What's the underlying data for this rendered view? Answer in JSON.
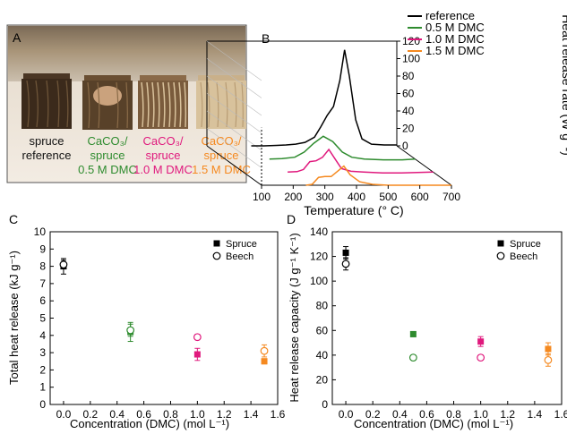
{
  "panel_labels": [
    "A",
    "B",
    "C",
    "D"
  ],
  "photo": {
    "samples": [
      {
        "lines": [
          "spruce",
          "reference"
        ],
        "color": "#111111"
      },
      {
        "lines": [
          "CaCO₃/",
          "spruce",
          "0.5 M DMC"
        ],
        "colors": [
          "#2e8b2e",
          "#2e8b2e",
          "#2e8b2e"
        ]
      },
      {
        "lines": [
          "CaCO₃/",
          "spruce",
          "1.0 M DMC"
        ],
        "colors": [
          "#e0197d",
          "#e0197d",
          "#e0197d"
        ]
      },
      {
        "lines": [
          "CaCO₃/",
          "spruce",
          "1.5 M DMC"
        ],
        "colors": [
          "#f5891f",
          "#f5891f",
          "#f5891f"
        ]
      }
    ]
  },
  "chart_data": [
    {
      "panel": "B",
      "type": "line",
      "view": "3d-offset",
      "xlabel": "Temperature (° C)",
      "xticks": [
        100,
        200,
        300,
        400,
        500,
        600,
        700
      ],
      "xlim": [
        100,
        700
      ],
      "zlabel": "Heat release rate (W g⁻¹)",
      "zticks": [
        0,
        20,
        40,
        60,
        80,
        100,
        120
      ],
      "zlim": [
        0,
        120
      ],
      "legend": "top-left",
      "series": [
        {
          "name": "reference",
          "color": "#000000",
          "x": [
            240,
            280,
            320,
            350,
            380,
            410,
            440,
            460,
            480,
            500,
            520,
            535,
            550,
            570,
            590,
            620,
            660,
            700
          ],
          "y": [
            0,
            0,
            0.5,
            1,
            2,
            4,
            10,
            22,
            35,
            45,
            75,
            110,
            80,
            30,
            8,
            2,
            1,
            1
          ]
        },
        {
          "name": "0.5 M DMC",
          "color": "#2e8b2e",
          "x": [
            240,
            280,
            320,
            350,
            380,
            410,
            440,
            470,
            500,
            540,
            600,
            660,
            700
          ],
          "y": [
            0,
            0.5,
            2,
            8,
            18,
            26,
            20,
            8,
            2,
            0,
            -1,
            -1,
            0
          ]
        },
        {
          "name": "1.0 M DMC",
          "color": "#e0197d",
          "x": [
            240,
            270,
            290,
            310,
            330,
            350,
            370,
            390,
            410,
            440,
            480,
            540,
            600,
            700
          ],
          "y": [
            0,
            0.5,
            3,
            12,
            13,
            17,
            26,
            15,
            4,
            1,
            0,
            -1,
            -1,
            0
          ]
        },
        {
          "name": "1.5 M DMC",
          "color": "#f5891f",
          "x": [
            240,
            260,
            280,
            300,
            320,
            340,
            360,
            380,
            410,
            450,
            500,
            600,
            700
          ],
          "y": [
            0,
            1,
            9,
            10,
            10,
            16,
            22,
            12,
            4,
            1,
            0,
            0,
            0
          ]
        }
      ]
    },
    {
      "panel": "C",
      "type": "scatter",
      "xlabel": "Concentration (DMC) (mol L⁻¹)",
      "ylabel": "Total heat release (kJ g⁻¹)",
      "xticks": [
        0.0,
        0.2,
        0.4,
        0.6,
        0.8,
        1.0,
        1.2,
        1.4,
        1.6
      ],
      "yticks": [
        0,
        1,
        2,
        3,
        4,
        5,
        6,
        7,
        8,
        9,
        10
      ],
      "xlim": [
        -0.1,
        1.6
      ],
      "ylim": [
        0,
        10
      ],
      "legend": "top-right",
      "legend_entries": [
        {
          "name": "Spruce",
          "marker": "filled-square",
          "color": "#000000"
        },
        {
          "name": "Beech",
          "marker": "open-circle",
          "color": "#000000"
        }
      ],
      "points": [
        {
          "x": 0.0,
          "y": 8.0,
          "err": 0.45,
          "series": "Spruce",
          "color": "#000000"
        },
        {
          "x": 0.0,
          "y": 8.1,
          "err": 0.25,
          "series": "Beech",
          "color": "#000000"
        },
        {
          "x": 0.5,
          "y": 4.2,
          "err": 0.55,
          "series": "Spruce",
          "color": "#2e8b2e"
        },
        {
          "x": 0.5,
          "y": 4.3,
          "err": 0.35,
          "series": "Beech",
          "color": "#2e8b2e"
        },
        {
          "x": 1.0,
          "y": 2.9,
          "err": 0.35,
          "series": "Spruce",
          "color": "#e0197d"
        },
        {
          "x": 1.0,
          "y": 3.9,
          "err": 0.15,
          "series": "Beech",
          "color": "#e0197d"
        },
        {
          "x": 1.5,
          "y": 2.5,
          "err": 0.15,
          "series": "Spruce",
          "color": "#f5891f"
        },
        {
          "x": 1.5,
          "y": 3.1,
          "err": 0.35,
          "series": "Beech",
          "color": "#f5891f"
        }
      ]
    },
    {
      "panel": "D",
      "type": "scatter",
      "xlabel": "Concentration (DMC) (mol L⁻¹)",
      "ylabel": "Heat release capacity (J g⁻¹ K⁻¹)",
      "xticks": [
        0.0,
        0.2,
        0.4,
        0.6,
        0.8,
        1.0,
        1.2,
        1.4,
        1.6
      ],
      "yticks": [
        0,
        20,
        40,
        60,
        80,
        100,
        120,
        140
      ],
      "xlim": [
        -0.1,
        1.6
      ],
      "ylim": [
        0,
        140
      ],
      "legend": "top-right",
      "legend_entries": [
        {
          "name": "Spruce",
          "marker": "filled-square",
          "color": "#000000"
        },
        {
          "name": "Beech",
          "marker": "open-circle",
          "color": "#000000"
        }
      ],
      "points": [
        {
          "x": 0.0,
          "y": 123,
          "err": 5,
          "series": "Spruce",
          "color": "#000000"
        },
        {
          "x": 0.0,
          "y": 114,
          "err": 5,
          "series": "Beech",
          "color": "#000000"
        },
        {
          "x": 0.5,
          "y": 57,
          "err": 2,
          "series": "Spruce",
          "color": "#2e8b2e"
        },
        {
          "x": 0.5,
          "y": 38,
          "err": 1,
          "series": "Beech",
          "color": "#2e8b2e"
        },
        {
          "x": 1.0,
          "y": 51,
          "err": 4,
          "series": "Spruce",
          "color": "#e0197d"
        },
        {
          "x": 1.0,
          "y": 38,
          "err": 2,
          "series": "Beech",
          "color": "#e0197d"
        },
        {
          "x": 1.5,
          "y": 45,
          "err": 5,
          "series": "Spruce",
          "color": "#f5891f"
        },
        {
          "x": 1.5,
          "y": 36,
          "err": 5,
          "series": "Beech",
          "color": "#f5891f"
        }
      ]
    }
  ]
}
